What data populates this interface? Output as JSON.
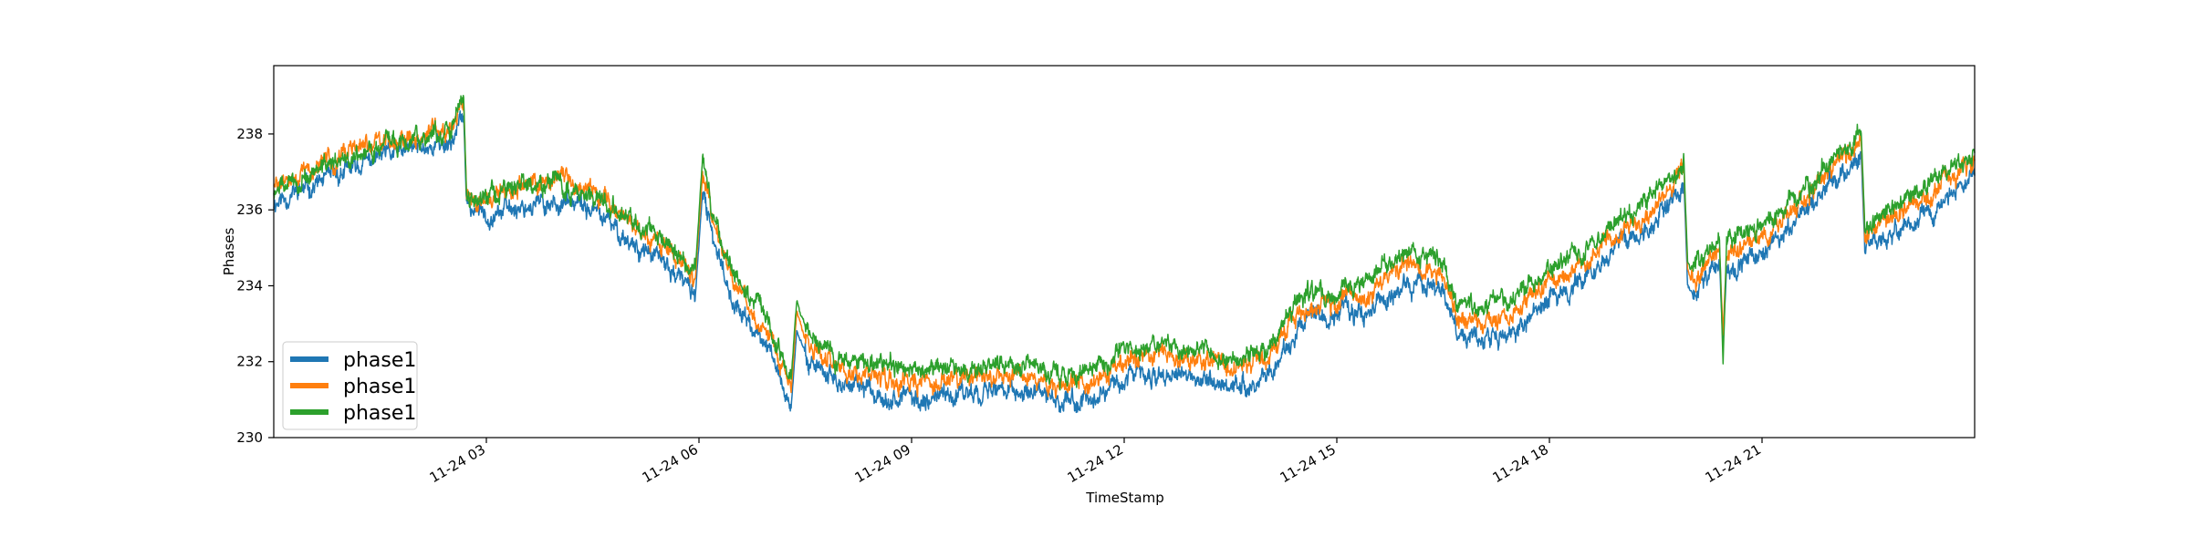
{
  "chart_data": {
    "type": "line",
    "title": "",
    "xlabel": "TimeStamp",
    "ylabel": "Phases",
    "x_start": "11-24 00:00",
    "x_end": "11-24 24:00",
    "x_ticks": [
      "11-24 03",
      "11-24 06",
      "11-24 09",
      "11-24 12",
      "11-24 15",
      "11-24 18",
      "11-24 21"
    ],
    "x_tick_hours": [
      3,
      6,
      9,
      12,
      15,
      18,
      21
    ],
    "ylim": [
      230,
      239.8
    ],
    "y_ticks": [
      230,
      232,
      234,
      236,
      238
    ],
    "grid": false,
    "legend_position": "lower-left",
    "x_hours": [
      0.0,
      0.5,
      1.0,
      1.5,
      2.0,
      2.5,
      2.68,
      2.72,
      3.0,
      3.5,
      4.0,
      4.5,
      5.0,
      5.5,
      5.95,
      6.05,
      6.2,
      6.25,
      6.5,
      7.0,
      7.3,
      7.38,
      7.5,
      8.0,
      8.5,
      9.0,
      9.5,
      10.0,
      10.5,
      11.0,
      11.5,
      12.0,
      12.5,
      13.0,
      13.5,
      14.0,
      14.5,
      15.0,
      15.5,
      16.0,
      16.5,
      16.7,
      17.0,
      17.5,
      18.0,
      18.5,
      19.0,
      19.5,
      19.9,
      19.95,
      20.0,
      20.4,
      20.45,
      20.5,
      21.0,
      21.5,
      22.0,
      22.4,
      22.45,
      23.0,
      23.5,
      24.0
    ],
    "series": [
      {
        "name": "phase1",
        "color": "#1f77b4",
        "values": [
          236.2,
          236.6,
          237.0,
          237.4,
          237.6,
          237.8,
          238.5,
          236.1,
          235.9,
          236.1,
          236.2,
          236.0,
          235.2,
          234.6,
          233.8,
          236.4,
          235.2,
          235.0,
          233.5,
          232.3,
          230.8,
          232.8,
          232.2,
          231.4,
          231.2,
          231.0,
          231.1,
          231.3,
          231.2,
          231.0,
          231.0,
          231.6,
          231.7,
          231.5,
          231.4,
          231.6,
          233.0,
          233.2,
          233.4,
          234.1,
          233.8,
          232.7,
          232.6,
          232.8,
          233.7,
          234.2,
          235.0,
          235.7,
          236.6,
          234.0,
          233.8,
          234.6,
          232.4,
          234.5,
          234.8,
          235.7,
          236.7,
          237.4,
          235.0,
          235.6,
          236.2,
          236.9
        ]
      },
      {
        "name": "phase1",
        "color": "#ff7f0e",
        "values": [
          236.6,
          237.0,
          237.5,
          237.8,
          237.9,
          238.2,
          238.9,
          236.5,
          236.3,
          236.6,
          236.8,
          236.6,
          235.7,
          235.0,
          234.2,
          236.9,
          235.7,
          235.4,
          234.0,
          232.7,
          231.2,
          233.3,
          232.6,
          231.8,
          231.7,
          231.5,
          231.5,
          231.7,
          231.6,
          231.4,
          231.5,
          232.0,
          232.2,
          232.0,
          231.8,
          232.0,
          233.4,
          233.6,
          233.8,
          234.6,
          234.2,
          233.2,
          233.0,
          233.2,
          234.1,
          234.6,
          235.4,
          236.1,
          237.0,
          234.4,
          234.1,
          235.0,
          232.8,
          234.9,
          235.2,
          236.1,
          237.1,
          237.8,
          235.4,
          236.0,
          236.6,
          237.3
        ]
      },
      {
        "name": "phase1",
        "color": "#2ca02c",
        "values": [
          236.5,
          236.9,
          237.3,
          237.7,
          237.9,
          238.1,
          239.0,
          236.4,
          236.4,
          236.6,
          236.7,
          236.4,
          235.8,
          235.2,
          234.4,
          237.3,
          235.9,
          235.5,
          234.2,
          233.0,
          231.5,
          233.6,
          233.0,
          232.0,
          232.0,
          231.8,
          231.8,
          232.0,
          231.9,
          231.6,
          231.7,
          232.3,
          232.4,
          232.3,
          232.1,
          232.3,
          233.7,
          233.8,
          234.2,
          234.9,
          234.6,
          233.6,
          233.4,
          233.6,
          234.5,
          235.0,
          235.7,
          236.4,
          237.1,
          234.6,
          234.4,
          235.2,
          232.0,
          235.2,
          235.6,
          236.4,
          237.3,
          238.0,
          235.6,
          236.3,
          236.8,
          237.5
        ]
      }
    ]
  }
}
